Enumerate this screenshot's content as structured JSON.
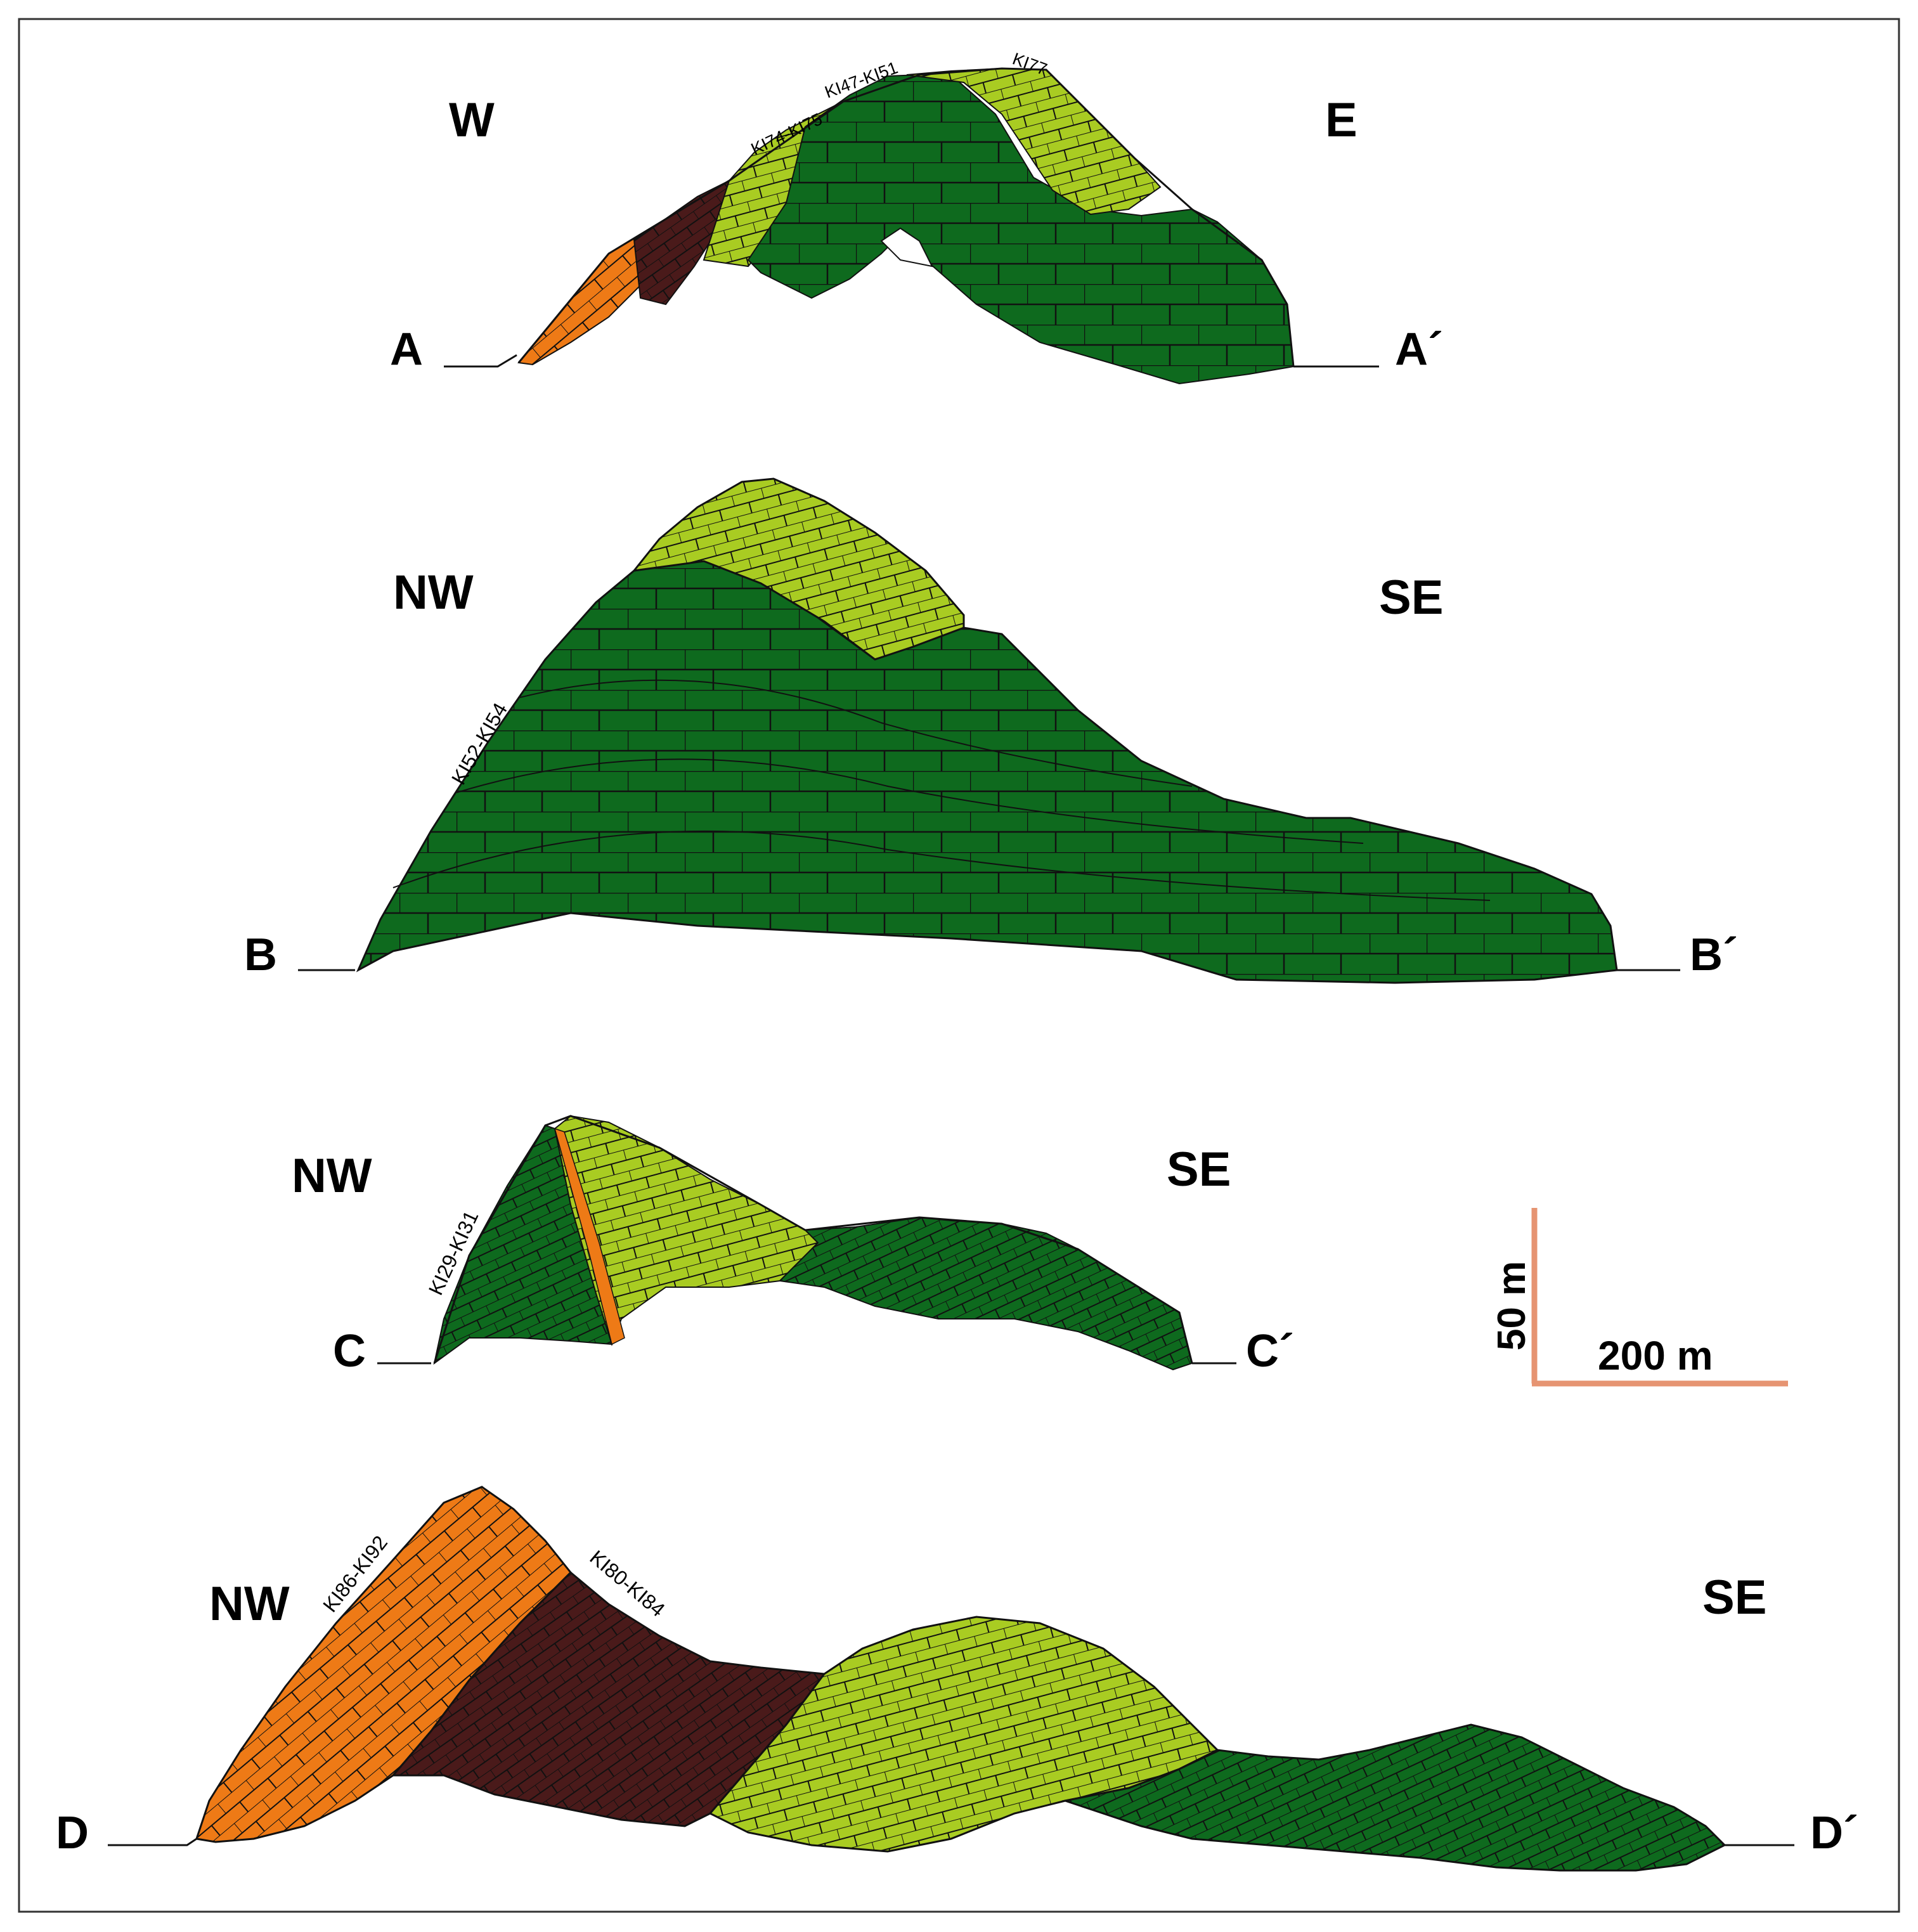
{
  "colors": {
    "dark_green": "#0e6a1e",
    "light_green": "#a9cc22",
    "orange": "#ee7a16",
    "maroon": "#4a1a1a",
    "scale_bar": "#e69472",
    "frame": "#333333",
    "block_line": "#111111"
  },
  "sections": [
    {
      "id": "A",
      "start_label": "A",
      "end_label": "A´",
      "left_direction": "W",
      "right_direction": "E",
      "unit_labels": [
        "KI74-KI75",
        "KI47-KI51",
        "KI77"
      ]
    },
    {
      "id": "B",
      "start_label": "B",
      "end_label": "B´",
      "left_direction": "NW",
      "right_direction": "SE",
      "unit_labels": [
        "KI52-KI54"
      ]
    },
    {
      "id": "C",
      "start_label": "C",
      "end_label": "C´",
      "left_direction": "NW",
      "right_direction": "SE",
      "unit_labels": [
        "KI29-KI31"
      ]
    },
    {
      "id": "D",
      "start_label": "D",
      "end_label": "D´",
      "left_direction": "NW",
      "right_direction": "SE",
      "unit_labels": [
        "KI86-KI92",
        "KI80-KI84"
      ]
    }
  ],
  "scale_bar": {
    "vertical_label": "50 m",
    "horizontal_label": "200 m"
  }
}
